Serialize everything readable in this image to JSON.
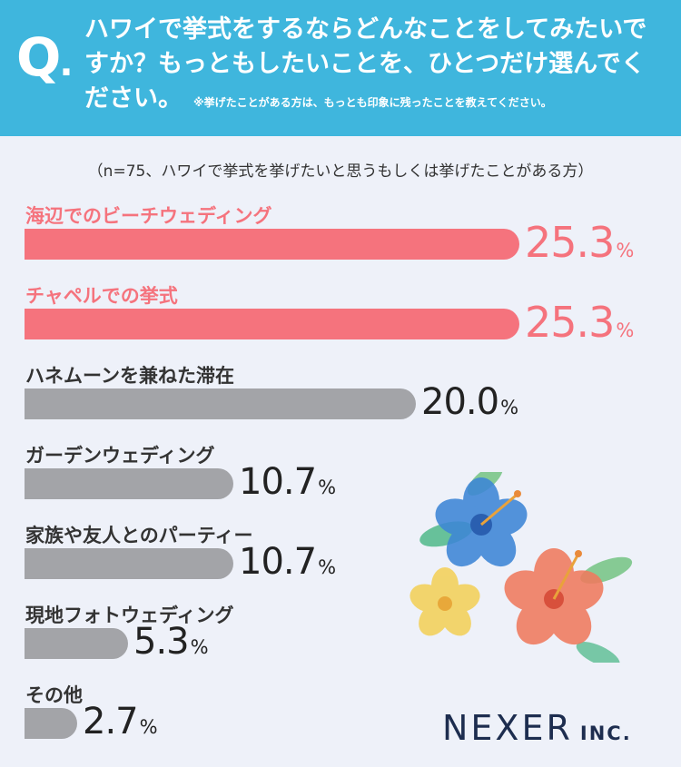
{
  "header": {
    "q_mark": "Q",
    "q_dot": ".",
    "question": "ハワイで挙式をするならどんなことをしてみたいですか？もっともしたいことを、ひとつだけ選んでください。",
    "note": "※挙げたことがある方は、もっとも印象に残ったことを教えてください。"
  },
  "sample_note": "（n=75、ハワイで挙式を挙げたいと思うもしくは挙げたことがある方）",
  "percent_sign": "%",
  "colors": {
    "header": "#3fb6dd",
    "highlight": "#f5737d",
    "normal": "#a3a4a8",
    "text": "#333333"
  },
  "chart_data": {
    "type": "bar",
    "orientation": "horizontal",
    "categories": [
      "海辺でのビーチウェディング",
      "チャペルでの挙式",
      "ハネムーンを兼ねた滞在",
      "ガーデンウェディング",
      "家族や友人とのパーティー",
      "現地フォトウェディング",
      "その他"
    ],
    "values": [
      25.3,
      25.3,
      20.0,
      10.7,
      10.7,
      5.3,
      2.7
    ],
    "value_labels": [
      "25.3",
      "25.3",
      "20.0",
      "10.7",
      "10.7",
      "5.3",
      "2.7"
    ],
    "highlighted": [
      true,
      true,
      false,
      false,
      false,
      false,
      false
    ],
    "unit": "%",
    "xlim": [
      0,
      30
    ],
    "grid": false
  },
  "logo": {
    "main": "NEXER",
    "sub": "INC."
  },
  "decoration": {
    "icon": "hibiscus-flowers-illustration"
  }
}
